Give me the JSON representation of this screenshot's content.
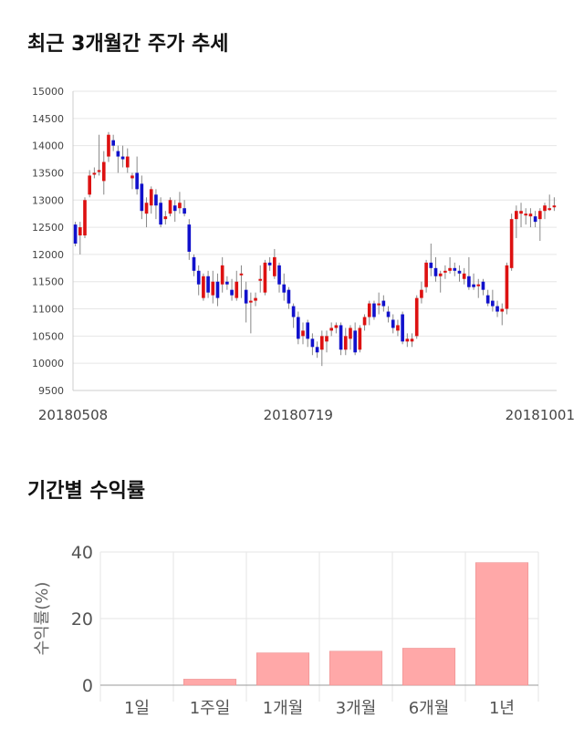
{
  "sections": {
    "price_title": "최근 3개월간 주가 추세",
    "returns_title": "기간별 수익률"
  },
  "chart_data": [
    {
      "type": "candlestick",
      "title": "최근 3개월간 주가 추세",
      "ylim": [
        9500,
        15000
      ],
      "yticks": [
        "15000",
        "14500",
        "14000",
        "13500",
        "13000",
        "12500",
        "12000",
        "11500",
        "11000",
        "10500",
        "10000",
        "9500"
      ],
      "xticks": [
        {
          "label": "20180508",
          "index": 0
        },
        {
          "label": "20180719",
          "index": 47
        },
        {
          "label": "20181001",
          "index": 95
        }
      ],
      "up_color": "#dd1111",
      "down_color": "#1111cc",
      "grid": true,
      "candles": [
        [
          12550,
          12200,
          12600,
          12150
        ],
        [
          12350,
          12500,
          12600,
          12000
        ],
        [
          12350,
          13000,
          13050,
          12300
        ],
        [
          13100,
          13450,
          13550,
          13050
        ],
        [
          13500,
          13500,
          13600,
          13400
        ],
        [
          13550,
          13550,
          14200,
          13450
        ],
        [
          13350,
          13700,
          13900,
          13100
        ],
        [
          13800,
          14200,
          14250,
          13700
        ],
        [
          14100,
          14000,
          14200,
          13900
        ],
        [
          13900,
          13800,
          14000,
          13500
        ],
        [
          13800,
          13750,
          14000,
          13600
        ],
        [
          13600,
          13800,
          13950,
          13500
        ],
        [
          13400,
          13450,
          13500,
          13200
        ],
        [
          13500,
          13200,
          13800,
          13100
        ],
        [
          13300,
          12800,
          13450,
          12650
        ],
        [
          12750,
          12950,
          13050,
          12500
        ],
        [
          12900,
          13200,
          13250,
          12750
        ],
        [
          13100,
          12900,
          13200,
          12650
        ],
        [
          12950,
          12550,
          13050,
          12500
        ],
        [
          12650,
          12700,
          12800,
          12550
        ],
        [
          12750,
          13000,
          13050,
          12700
        ],
        [
          12900,
          12800,
          13000,
          12600
        ],
        [
          12850,
          12950,
          13150,
          12750
        ],
        [
          12850,
          12750,
          13000,
          12700
        ],
        [
          12550,
          12050,
          12650,
          11900
        ],
        [
          11950,
          11700,
          12000,
          11600
        ],
        [
          11700,
          11450,
          11800,
          11250
        ],
        [
          11200,
          11600,
          11650,
          11150
        ],
        [
          11600,
          11300,
          11700,
          11200
        ],
        [
          11250,
          11500,
          11700,
          11100
        ],
        [
          11500,
          11200,
          11650,
          11050
        ],
        [
          11450,
          11800,
          11950,
          11300
        ],
        [
          11500,
          11450,
          11600,
          11350
        ],
        [
          11350,
          11250,
          11550,
          11150
        ],
        [
          11200,
          11500,
          11700,
          11150
        ],
        [
          11650,
          11650,
          11800,
          11200
        ],
        [
          11350,
          11100,
          11500,
          10750
        ],
        [
          11150,
          11150,
          11300,
          10550
        ],
        [
          11150,
          11200,
          11300,
          11050
        ],
        [
          11550,
          11550,
          11800,
          11300
        ],
        [
          11300,
          11850,
          11900,
          11250
        ],
        [
          11850,
          11800,
          11950,
          11700
        ],
        [
          11600,
          11950,
          12100,
          11550
        ],
        [
          11800,
          11450,
          11850,
          11300
        ],
        [
          11450,
          11300,
          11650,
          11150
        ],
        [
          11350,
          11100,
          11400,
          11000
        ],
        [
          11050,
          10850,
          11100,
          10650
        ],
        [
          10850,
          10450,
          10950,
          10350
        ],
        [
          10500,
          10600,
          10750,
          10350
        ],
        [
          10750,
          10450,
          10800,
          10300
        ],
        [
          10450,
          10300,
          10550,
          10150
        ],
        [
          10300,
          10200,
          10400,
          10100
        ],
        [
          10250,
          10500,
          10600,
          9950
        ],
        [
          10400,
          10500,
          10600,
          10200
        ],
        [
          10600,
          10650,
          10750,
          10500
        ],
        [
          10650,
          10700,
          10750,
          10550
        ],
        [
          10700,
          10250,
          10750,
          10150
        ],
        [
          10250,
          10500,
          10650,
          10150
        ],
        [
          10450,
          10650,
          10700,
          10250
        ],
        [
          10600,
          10200,
          10750,
          10150
        ],
        [
          10250,
          10650,
          10700,
          10200
        ],
        [
          10700,
          10850,
          10900,
          10600
        ],
        [
          10850,
          11100,
          11150,
          10700
        ],
        [
          11100,
          10850,
          11150,
          10800
        ],
        [
          11100,
          11100,
          11300,
          10900
        ],
        [
          11150,
          11050,
          11250,
          10950
        ],
        [
          10950,
          10850,
          11050,
          10750
        ],
        [
          10800,
          10650,
          10900,
          10550
        ],
        [
          10600,
          10700,
          10800,
          10500
        ],
        [
          10900,
          10400,
          10950,
          10350
        ],
        [
          10400,
          10450,
          10550,
          10300
        ],
        [
          10400,
          10450,
          10550,
          10300
        ],
        [
          10500,
          11200,
          11250,
          10450
        ],
        [
          11200,
          11350,
          11500,
          11100
        ],
        [
          11400,
          11850,
          11900,
          11300
        ],
        [
          11850,
          11750,
          12200,
          11600
        ],
        [
          11750,
          11600,
          11950,
          11500
        ],
        [
          11600,
          11650,
          11700,
          11300
        ],
        [
          11700,
          11700,
          11800,
          11550
        ],
        [
          11700,
          11750,
          11950,
          11650
        ],
        [
          11750,
          11700,
          11850,
          11600
        ],
        [
          11700,
          11650,
          11800,
          11500
        ],
        [
          11550,
          11650,
          11750,
          11450
        ],
        [
          11600,
          11400,
          11950,
          11350
        ],
        [
          11450,
          11400,
          11650,
          11350
        ],
        [
          11450,
          11450,
          11550,
          11200
        ],
        [
          11500,
          11350,
          11550,
          11250
        ],
        [
          11250,
          11100,
          11350,
          11050
        ],
        [
          11150,
          11050,
          11350,
          10950
        ],
        [
          11050,
          10950,
          11150,
          10850
        ],
        [
          10950,
          11000,
          11100,
          10700
        ],
        [
          11000,
          11800,
          11850,
          10900
        ],
        [
          11750,
          12650,
          12750,
          11700
        ],
        [
          12650,
          12800,
          12900,
          12300
        ],
        [
          12750,
          12800,
          12950,
          12500
        ],
        [
          12750,
          12750,
          12850,
          12550
        ],
        [
          12700,
          12750,
          12850,
          12500
        ],
        [
          12700,
          12600,
          12800,
          12500
        ],
        [
          12650,
          12800,
          12850,
          12250
        ],
        [
          12800,
          12900,
          12950,
          12650
        ],
        [
          12850,
          12850,
          13100,
          12800
        ],
        [
          12900,
          12900,
          13050,
          12800
        ]
      ]
    },
    {
      "type": "bar",
      "title": "기간별 수익률",
      "categories": [
        "1일",
        "1주일",
        "1개월",
        "3개월",
        "6개월",
        "1년"
      ],
      "values": [
        0.0,
        1.8,
        9.7,
        10.2,
        11.1,
        36.8
      ],
      "ylabel": "수익률(%)",
      "ylim": [
        0,
        40
      ],
      "yticks": [
        "0",
        "20",
        "40"
      ],
      "bar_color": "#ffa8a8",
      "grid": true
    }
  ]
}
